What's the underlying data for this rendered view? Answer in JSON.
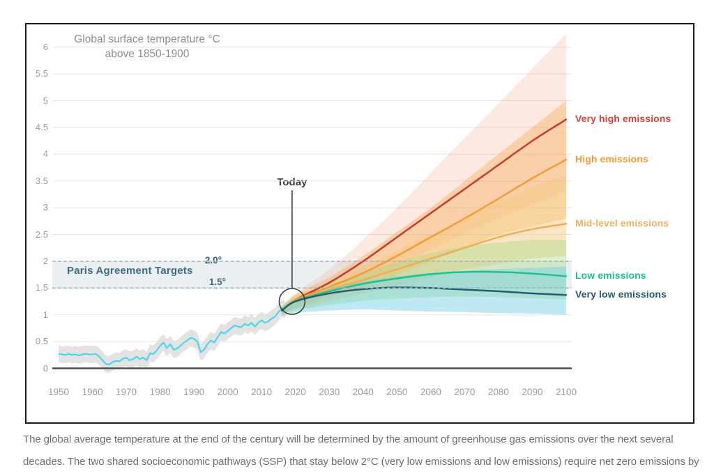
{
  "figure": {
    "border_color": "#1b1b1b",
    "background": "#ffffff"
  },
  "caption": {
    "line1": "The global average temperature at the end of the century will be determined by the amount of greenhouse gas emissions over the next several",
    "line2": "decades. The two shared socioeconomic pathways (SSP) that stay below 2°C (very low emissions and low emissions) require net zero emissions by"
  },
  "chart_data": {
    "type": "line",
    "title_line1": "Global surface temperature °C",
    "title_line2": "above 1850-1900",
    "xlabel": "",
    "ylabel": "Global surface temperature °C above 1850-1900",
    "xlim": [
      1948,
      2100
    ],
    "ylim": [
      0,
      6.3
    ],
    "grid": true,
    "legend_position": "right-of-line-ends",
    "x_ticks": [
      1950,
      1960,
      1970,
      1980,
      1990,
      2000,
      2010,
      2020,
      2030,
      2040,
      2050,
      2060,
      2070,
      2080,
      2090,
      2100
    ],
    "y_ticks": [
      "0",
      "0.5",
      "1",
      "1.5",
      "2",
      "2.5",
      "3",
      "3.5",
      "4",
      "4.5",
      "5",
      "5.5",
      "6"
    ],
    "colors": {
      "grid": "#e3e3e3",
      "zero_line": "#4f4f4f",
      "tick_text": "#9b9b9b",
      "title_text": "#8d8d8d",
      "paris_fill": "rgba(141,170,184,0.18)",
      "paris_text": "#2e5d78",
      "dashed_line": "#9eb6c1",
      "today": "#3d3d3d",
      "caption_text": "#6e6e6e"
    },
    "annotations": {
      "today_label": "Today",
      "today_year": 2019,
      "today_temp": 1.25,
      "circle_radius": 18.5,
      "paris_label": "Paris Agreement Targets",
      "paris_upper_label": "2.0°",
      "paris_lower_label": "1.5°",
      "paris_range": [
        1.5,
        2.0
      ]
    },
    "historical": {
      "name": "Observed global surface temperature",
      "line_color": "#4cd5ee",
      "band_color": "#e0e0e0",
      "band_halfwidth": 0.16,
      "points": [
        [
          1950,
          0.27
        ],
        [
          1951,
          0.26
        ],
        [
          1952,
          0.25
        ],
        [
          1953,
          0.27
        ],
        [
          1954,
          0.25
        ],
        [
          1955,
          0.26
        ],
        [
          1956,
          0.24
        ],
        [
          1957,
          0.26
        ],
        [
          1958,
          0.27
        ],
        [
          1959,
          0.26
        ],
        [
          1960,
          0.26
        ],
        [
          1961,
          0.27
        ],
        [
          1962,
          0.22
        ],
        [
          1963,
          0.15
        ],
        [
          1964,
          0.08
        ],
        [
          1965,
          0.07
        ],
        [
          1966,
          0.12
        ],
        [
          1967,
          0.14
        ],
        [
          1968,
          0.13
        ],
        [
          1969,
          0.18
        ],
        [
          1970,
          0.2
        ],
        [
          1971,
          0.15
        ],
        [
          1972,
          0.17
        ],
        [
          1973,
          0.22
        ],
        [
          1974,
          0.17
        ],
        [
          1975,
          0.2
        ],
        [
          1976,
          0.15
        ],
        [
          1977,
          0.28
        ],
        [
          1978,
          0.27
        ],
        [
          1979,
          0.33
        ],
        [
          1980,
          0.42
        ],
        [
          1981,
          0.48
        ],
        [
          1982,
          0.38
        ],
        [
          1983,
          0.45
        ],
        [
          1984,
          0.35
        ],
        [
          1985,
          0.37
        ],
        [
          1986,
          0.42
        ],
        [
          1987,
          0.48
        ],
        [
          1988,
          0.52
        ],
        [
          1989,
          0.57
        ],
        [
          1990,
          0.55
        ],
        [
          1991,
          0.5
        ],
        [
          1992,
          0.3
        ],
        [
          1993,
          0.35
        ],
        [
          1994,
          0.45
        ],
        [
          1995,
          0.52
        ],
        [
          1996,
          0.48
        ],
        [
          1997,
          0.58
        ],
        [
          1998,
          0.68
        ],
        [
          1999,
          0.65
        ],
        [
          2000,
          0.7
        ],
        [
          2001,
          0.75
        ],
        [
          2002,
          0.8
        ],
        [
          2003,
          0.78
        ],
        [
          2004,
          0.77
        ],
        [
          2005,
          0.83
        ],
        [
          2006,
          0.8
        ],
        [
          2007,
          0.85
        ],
        [
          2008,
          0.78
        ],
        [
          2009,
          0.85
        ],
        [
          2010,
          0.9
        ],
        [
          2011,
          0.85
        ],
        [
          2012,
          0.88
        ],
        [
          2013,
          0.93
        ],
        [
          2014,
          0.97
        ],
        [
          2015,
          1.05
        ],
        [
          2016,
          1.12
        ],
        [
          2017,
          1.1
        ]
      ]
    },
    "series": [
      {
        "id": "very_high",
        "label": "Very high emissions",
        "color": "#c23b2d",
        "label_color": "#d2443a",
        "band_color": "#f09a7a",
        "band_opacity": 0.22,
        "x": [
          2016,
          2020,
          2030,
          2040,
          2050,
          2060,
          2070,
          2080,
          2090,
          2100
        ],
        "y": [
          1.08,
          1.28,
          1.6,
          2.0,
          2.45,
          2.9,
          3.35,
          3.8,
          4.25,
          4.65
        ],
        "band_upper": [
          1.15,
          1.4,
          1.85,
          2.4,
          3.0,
          3.65,
          4.3,
          4.95,
          5.6,
          6.25
        ],
        "band_lower": [
          1.0,
          1.15,
          1.38,
          1.62,
          1.92,
          2.22,
          2.52,
          2.8,
          3.05,
          3.3
        ]
      },
      {
        "id": "high",
        "label": "High emissions",
        "color": "#f59b32",
        "label_color": "#f59b32",
        "band_color": "#f5a43b",
        "band_opacity": 0.35,
        "x": [
          2016,
          2020,
          2030,
          2040,
          2050,
          2060,
          2070,
          2080,
          2090,
          2100
        ],
        "y": [
          1.08,
          1.28,
          1.52,
          1.78,
          2.1,
          2.45,
          2.8,
          3.17,
          3.55,
          3.9
        ],
        "band_upper": [
          1.15,
          1.38,
          1.7,
          2.1,
          2.55,
          3.0,
          3.5,
          4.0,
          4.5,
          5.0
        ],
        "band_lower": [
          1.0,
          1.13,
          1.32,
          1.52,
          1.75,
          2.0,
          2.25,
          2.5,
          2.65,
          2.8
        ]
      },
      {
        "id": "mid",
        "label": "Mid-level emissions",
        "color": "#f0ad56",
        "label_color": "#eeb061",
        "band_color": "#f3c87e",
        "band_opacity": 0.45,
        "x": [
          2016,
          2020,
          2030,
          2040,
          2050,
          2060,
          2070,
          2080,
          2090,
          2100
        ],
        "y": [
          1.08,
          1.26,
          1.47,
          1.65,
          1.85,
          2.05,
          2.25,
          2.45,
          2.6,
          2.7
        ],
        "band_upper": [
          1.15,
          1.35,
          1.6,
          1.9,
          2.2,
          2.5,
          2.8,
          3.1,
          3.4,
          3.6
        ],
        "band_lower": [
          1.0,
          1.1,
          1.25,
          1.4,
          1.55,
          1.7,
          1.85,
          1.95,
          2.05,
          2.1
        ]
      },
      {
        "id": "low",
        "label": "Low emissions",
        "color": "#1ec08e",
        "label_color": "#1ec08e",
        "band_color": "#a9d67f",
        "band_opacity": 0.4,
        "x": [
          2016,
          2020,
          2030,
          2040,
          2050,
          2060,
          2070,
          2080,
          2090,
          2100
        ],
        "y": [
          1.08,
          1.26,
          1.44,
          1.58,
          1.68,
          1.76,
          1.8,
          1.8,
          1.77,
          1.72
        ],
        "band_upper": [
          1.15,
          1.32,
          1.55,
          1.78,
          1.98,
          2.15,
          2.28,
          2.35,
          2.4,
          2.4
        ],
        "band_lower": [
          1.0,
          1.08,
          1.18,
          1.26,
          1.3,
          1.33,
          1.34,
          1.33,
          1.31,
          1.28
        ]
      },
      {
        "id": "very_low",
        "label": "Very low emissions",
        "color": "#2a5a70",
        "label_color": "#2a5a70",
        "band_color": "#6ecfe4",
        "band_opacity": 0.45,
        "x": [
          2016,
          2020,
          2030,
          2040,
          2050,
          2060,
          2070,
          2080,
          2090,
          2100
        ],
        "y": [
          1.08,
          1.25,
          1.4,
          1.48,
          1.51,
          1.5,
          1.47,
          1.44,
          1.4,
          1.37
        ],
        "band_upper": [
          1.15,
          1.3,
          1.48,
          1.62,
          1.72,
          1.78,
          1.82,
          1.85,
          1.88,
          1.9
        ],
        "band_lower": [
          0.98,
          1.03,
          1.08,
          1.1,
          1.08,
          1.06,
          1.05,
          1.03,
          1.02,
          1.0
        ]
      }
    ]
  }
}
